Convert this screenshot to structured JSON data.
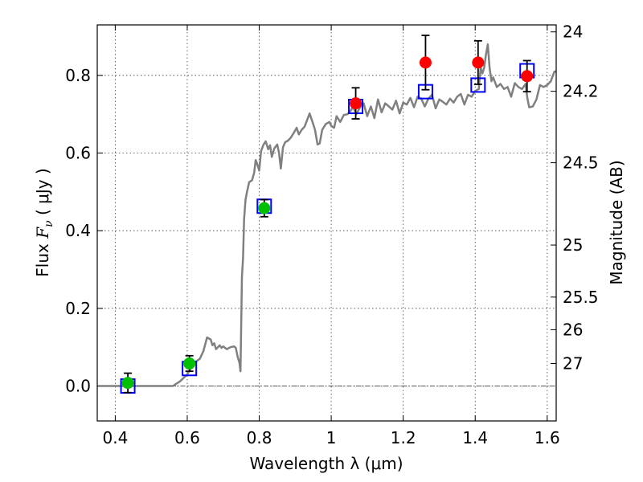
{
  "chart_data": {
    "type": "scatter",
    "title": "",
    "xlabel": "Wavelength  λ (μm)",
    "ylabel_parts": {
      "prefix": "Flux  ",
      "symbol": "F",
      "subscript": "ν",
      "unit": "  ( μJy )"
    },
    "y2label": "Magnitude (AB)",
    "xlim": [
      0.35,
      1.625
    ],
    "ylim": [
      -0.09,
      0.93
    ],
    "grid": true,
    "x_ticks": [
      {
        "value": 0.4,
        "label": "0.4"
      },
      {
        "value": 0.6,
        "label": "0.6"
      },
      {
        "value": 0.8,
        "label": "0.8"
      },
      {
        "value": 1.0,
        "label": "1"
      },
      {
        "value": 1.2,
        "label": "1.2"
      },
      {
        "value": 1.4,
        "label": "1.4"
      },
      {
        "value": 1.6,
        "label": "1.6"
      }
    ],
    "y_ticks": [
      {
        "value": 0.0,
        "label": "0.0"
      },
      {
        "value": 0.2,
        "label": "0.2"
      },
      {
        "value": 0.4,
        "label": "0.4"
      },
      {
        "value": 0.6,
        "label": "0.6"
      },
      {
        "value": 0.8,
        "label": "0.8"
      }
    ],
    "y2_ticks": [
      {
        "label": "24",
        "flux": 0.912
      },
      {
        "label": "24.2",
        "flux": 0.759
      },
      {
        "label": "24.5",
        "flux": 0.575
      },
      {
        "label": "25",
        "flux": 0.363
      },
      {
        "label": "25.5",
        "flux": 0.229
      },
      {
        "label": "26",
        "flux": 0.145
      },
      {
        "label": "27",
        "flux": 0.058
      }
    ],
    "zero_line": 0.0,
    "series": [
      {
        "kind": "model",
        "points": [
          [
            0.35,
            0.0
          ],
          [
            0.56,
            0.0
          ],
          [
            0.58,
            0.012
          ],
          [
            0.6,
            0.03
          ],
          [
            0.62,
            0.06
          ],
          [
            0.635,
            0.07
          ],
          [
            0.645,
            0.09
          ],
          [
            0.655,
            0.125
          ],
          [
            0.665,
            0.12
          ],
          [
            0.67,
            0.105
          ],
          [
            0.675,
            0.11
          ],
          [
            0.68,
            0.095
          ],
          [
            0.69,
            0.105
          ],
          [
            0.695,
            0.098
          ],
          [
            0.7,
            0.102
          ],
          [
            0.71,
            0.095
          ],
          [
            0.72,
            0.1
          ],
          [
            0.73,
            0.102
          ],
          [
            0.735,
            0.098
          ],
          [
            0.74,
            0.075
          ],
          [
            0.745,
            0.06
          ],
          [
            0.748,
            0.038
          ],
          [
            0.752,
            0.28
          ],
          [
            0.755,
            0.33
          ],
          [
            0.758,
            0.43
          ],
          [
            0.762,
            0.48
          ],
          [
            0.766,
            0.5
          ],
          [
            0.772,
            0.525
          ],
          [
            0.78,
            0.53
          ],
          [
            0.786,
            0.55
          ],
          [
            0.79,
            0.582
          ],
          [
            0.795,
            0.57
          ],
          [
            0.8,
            0.555
          ],
          [
            0.805,
            0.605
          ],
          [
            0.812,
            0.622
          ],
          [
            0.818,
            0.63
          ],
          [
            0.825,
            0.61
          ],
          [
            0.83,
            0.62
          ],
          [
            0.835,
            0.59
          ],
          [
            0.842,
            0.612
          ],
          [
            0.85,
            0.622
          ],
          [
            0.855,
            0.6
          ],
          [
            0.86,
            0.56
          ],
          [
            0.866,
            0.615
          ],
          [
            0.872,
            0.628
          ],
          [
            0.88,
            0.632
          ],
          [
            0.888,
            0.64
          ],
          [
            0.896,
            0.652
          ],
          [
            0.904,
            0.665
          ],
          [
            0.91,
            0.648
          ],
          [
            0.918,
            0.66
          ],
          [
            0.926,
            0.668
          ],
          [
            0.935,
            0.69
          ],
          [
            0.94,
            0.702
          ],
          [
            0.948,
            0.68
          ],
          [
            0.955,
            0.66
          ],
          [
            0.962,
            0.622
          ],
          [
            0.968,
            0.625
          ],
          [
            0.975,
            0.66
          ],
          [
            0.985,
            0.675
          ],
          [
            0.995,
            0.68
          ],
          [
            1.0,
            0.67
          ],
          [
            1.008,
            0.665
          ],
          [
            1.015,
            0.695
          ],
          [
            1.025,
            0.68
          ],
          [
            1.035,
            0.698
          ],
          [
            1.045,
            0.7
          ],
          [
            1.055,
            0.71
          ],
          [
            1.06,
            0.72
          ],
          [
            1.07,
            0.7
          ],
          [
            1.08,
            0.718
          ],
          [
            1.09,
            0.728
          ],
          [
            1.1,
            0.695
          ],
          [
            1.11,
            0.72
          ],
          [
            1.12,
            0.69
          ],
          [
            1.13,
            0.738
          ],
          [
            1.14,
            0.705
          ],
          [
            1.15,
            0.728
          ],
          [
            1.16,
            0.72
          ],
          [
            1.17,
            0.712
          ],
          [
            1.18,
            0.735
          ],
          [
            1.19,
            0.702
          ],
          [
            1.2,
            0.73
          ],
          [
            1.21,
            0.725
          ],
          [
            1.22,
            0.742
          ],
          [
            1.23,
            0.718
          ],
          [
            1.24,
            0.745
          ],
          [
            1.25,
            0.74
          ],
          [
            1.26,
            0.72
          ],
          [
            1.27,
            0.74
          ],
          [
            1.28,
            0.75
          ],
          [
            1.29,
            0.715
          ],
          [
            1.3,
            0.738
          ],
          [
            1.31,
            0.732
          ],
          [
            1.32,
            0.725
          ],
          [
            1.33,
            0.74
          ],
          [
            1.34,
            0.73
          ],
          [
            1.35,
            0.745
          ],
          [
            1.36,
            0.752
          ],
          [
            1.37,
            0.725
          ],
          [
            1.38,
            0.75
          ],
          [
            1.39,
            0.745
          ],
          [
            1.4,
            0.76
          ],
          [
            1.41,
            0.765
          ],
          [
            1.415,
            0.82
          ],
          [
            1.42,
            0.805
          ],
          [
            1.425,
            0.82
          ],
          [
            1.43,
            0.855
          ],
          [
            1.435,
            0.88
          ],
          [
            1.44,
            0.82
          ],
          [
            1.445,
            0.785
          ],
          [
            1.45,
            0.795
          ],
          [
            1.46,
            0.77
          ],
          [
            1.47,
            0.778
          ],
          [
            1.48,
            0.765
          ],
          [
            1.49,
            0.77
          ],
          [
            1.5,
            0.745
          ],
          [
            1.51,
            0.78
          ],
          [
            1.52,
            0.77
          ],
          [
            1.53,
            0.765
          ],
          [
            1.54,
            0.778
          ],
          [
            1.545,
            0.74
          ],
          [
            1.55,
            0.718
          ],
          [
            1.56,
            0.72
          ],
          [
            1.57,
            0.738
          ],
          [
            1.58,
            0.775
          ],
          [
            1.59,
            0.77
          ],
          [
            1.6,
            0.775
          ],
          [
            1.61,
            0.785
          ],
          [
            1.62,
            0.81
          ],
          [
            1.625,
            0.81
          ]
        ]
      },
      {
        "kind": "synthetic",
        "marker": "square",
        "points": [
          [
            0.435,
            0.0
          ],
          [
            0.606,
            0.045
          ],
          [
            0.814,
            0.463
          ],
          [
            1.068,
            0.72
          ],
          [
            1.262,
            0.758
          ],
          [
            1.408,
            0.775
          ],
          [
            1.544,
            0.812
          ]
        ]
      },
      {
        "kind": "observed",
        "color": "#00c000",
        "points": [
          {
            "x": 0.435,
            "y": 0.008,
            "err": 0.025
          },
          {
            "x": 0.606,
            "y": 0.058,
            "err": 0.02
          },
          {
            "x": 0.814,
            "y": 0.458,
            "err": 0.022
          }
        ]
      },
      {
        "kind": "observed",
        "color": "#ff0000",
        "points": [
          {
            "x": 1.068,
            "y": 0.728,
            "err": 0.04
          },
          {
            "x": 1.262,
            "y": 0.833,
            "err": 0.07
          },
          {
            "x": 1.408,
            "y": 0.833,
            "err": 0.056
          },
          {
            "x": 1.544,
            "y": 0.798,
            "err": 0.04
          }
        ]
      }
    ]
  }
}
